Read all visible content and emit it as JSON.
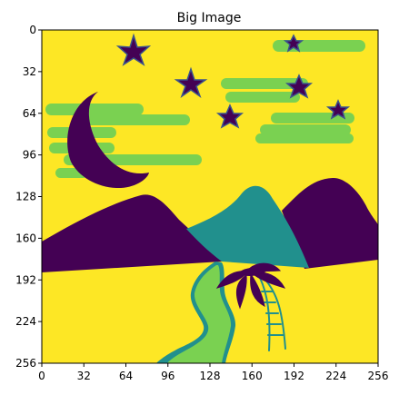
{
  "chart_data": {
    "type": "image",
    "title": "Big Image",
    "xlabel": "",
    "ylabel": "",
    "image_size": [
      256,
      256
    ],
    "xlim": [
      0,
      256
    ],
    "ylim": [
      256,
      0
    ],
    "x_ticks": [
      0,
      32,
      64,
      96,
      128,
      160,
      192,
      224,
      256
    ],
    "y_ticks": [
      0,
      32,
      64,
      96,
      128,
      160,
      192,
      224,
      256
    ],
    "grid": false,
    "colors": {
      "sky": "#fde725",
      "clouds": "#7ad151",
      "moon": "#440154",
      "stars": "#440154",
      "left_mountain": "#440154",
      "right_mountain": "#440154",
      "center_mountain": "#21908d",
      "path": "#7ad151",
      "path_edge": "#21908d",
      "palm_leaves": "#440154",
      "palm_trunk": "#21908d"
    },
    "image_content": [
      "yellow sky",
      "green clouds",
      "crescent moon",
      "stars",
      "mountains",
      "river path",
      "palm tree"
    ]
  }
}
